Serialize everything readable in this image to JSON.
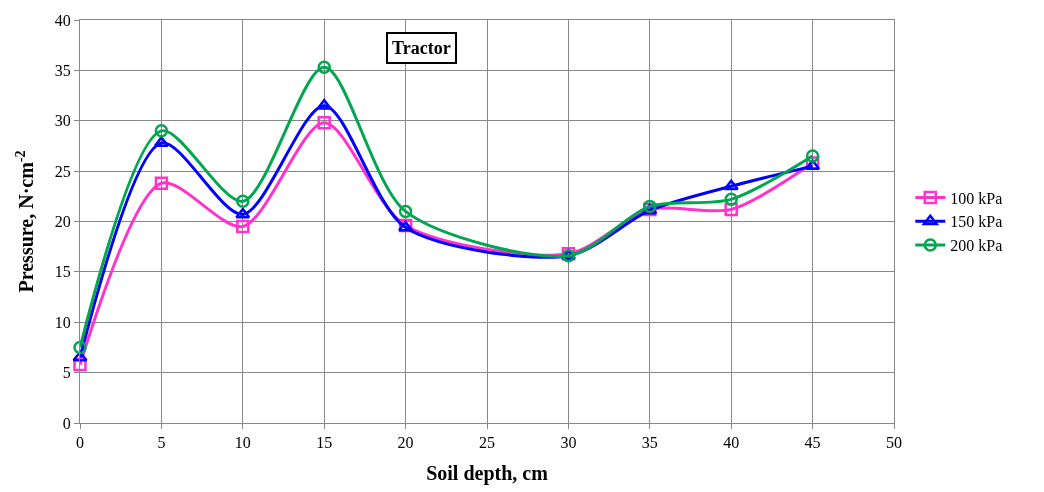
{
  "chart_data": {
    "type": "line",
    "title": "Tractor",
    "xlabel": "Soil depth, cm",
    "ylabel": "Pressure, N·cm$^{-2}$",
    "x": [
      0,
      5,
      10,
      15,
      20,
      30,
      35,
      40,
      45
    ],
    "series": [
      {
        "name": "100 kPa",
        "color": "#ff33cc",
        "marker": "square",
        "values": [
          5.8,
          23.8,
          19.5,
          29.8,
          19.6,
          16.8,
          21.2,
          21.2,
          25.8
        ]
      },
      {
        "name": "150 kPa",
        "color": "#0000ff",
        "marker": "triangle",
        "values": [
          6.5,
          27.8,
          20.7,
          31.5,
          19.4,
          16.6,
          21.1,
          23.5,
          25.5
        ]
      },
      {
        "name": "200 kPa",
        "color": "#00a650",
        "marker": "circle",
        "values": [
          7.5,
          29.0,
          22.0,
          35.3,
          21.0,
          16.6,
          21.5,
          22.2,
          26.5
        ]
      }
    ],
    "xlim": [
      0,
      50
    ],
    "xticks": [
      0,
      5,
      10,
      15,
      20,
      25,
      30,
      35,
      40,
      45,
      50
    ],
    "ylim": [
      0,
      40
    ],
    "yticks": [
      0,
      5,
      10,
      15,
      20,
      25,
      30,
      35,
      40
    ],
    "grid": true,
    "legend": "right",
    "line_style": "solid"
  }
}
